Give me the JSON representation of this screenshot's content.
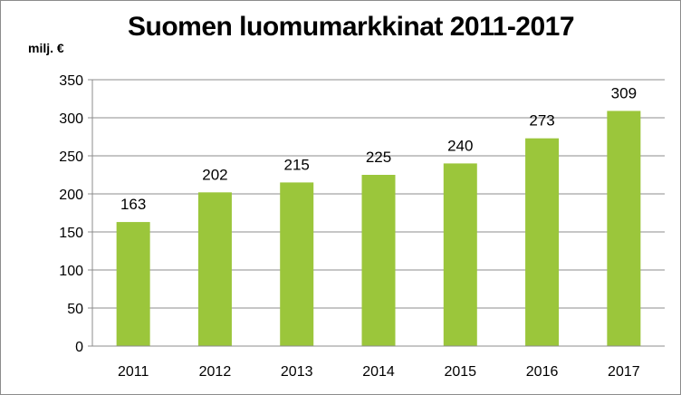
{
  "chart_data": {
    "type": "bar",
    "title": "Suomen luomumarkkinat 2011-2017",
    "ylabel": "milj. €",
    "xlabel": "",
    "categories": [
      "2011",
      "2012",
      "2013",
      "2014",
      "2015",
      "2016",
      "2017"
    ],
    "values": [
      163,
      202,
      215,
      225,
      240,
      273,
      309
    ],
    "data_labels": [
      "163",
      "202",
      "215",
      "225",
      "240",
      "273",
      "309"
    ],
    "ylim": [
      0,
      350
    ],
    "yticks": [
      0,
      50,
      100,
      150,
      200,
      250,
      300,
      350
    ],
    "grid": "horizontal",
    "legend": "none",
    "bar_color": "#9bc63b",
    "grid_color": "#8c8c8c"
  }
}
